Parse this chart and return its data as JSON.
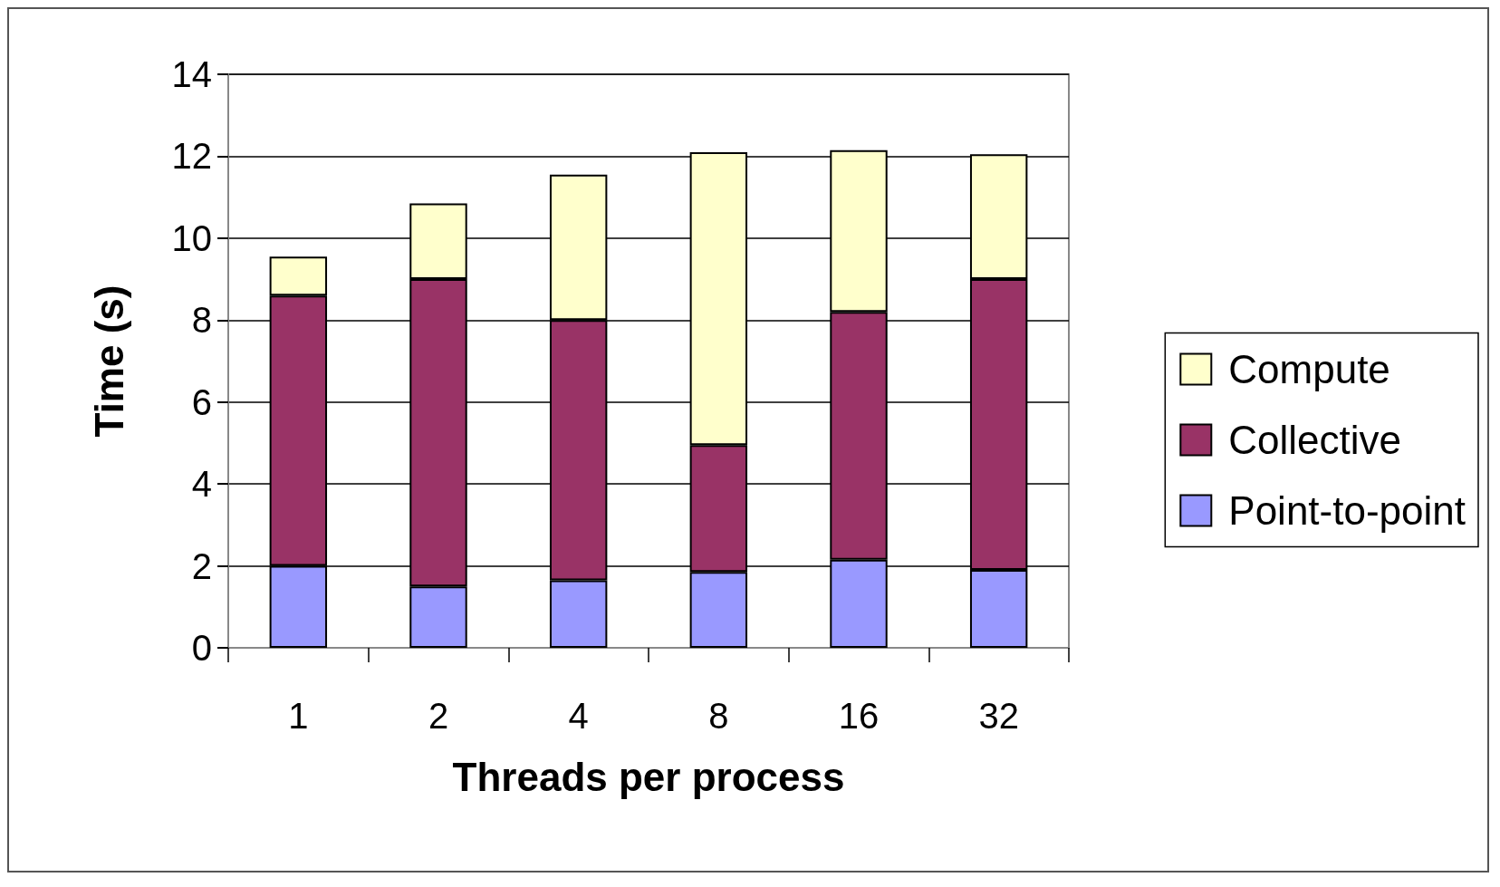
{
  "chart_data": {
    "type": "bar",
    "stacked": true,
    "xlabel": "Threads per process",
    "ylabel": "Time (s)",
    "categories": [
      "1",
      "2",
      "4",
      "8",
      "16",
      "32"
    ],
    "series": [
      {
        "name": "Point-to-point",
        "color": "#9999ff",
        "values": [
          2.0,
          1.5,
          1.65,
          1.85,
          2.15,
          1.9
        ]
      },
      {
        "name": "Collective",
        "color": "#993366",
        "values": [
          6.6,
          7.5,
          6.35,
          3.1,
          6.05,
          7.1
        ]
      },
      {
        "name": "Compute",
        "color": "#ffffcc",
        "values": [
          0.95,
          1.85,
          3.55,
          7.15,
          3.95,
          3.05
        ]
      }
    ],
    "ylim": [
      0,
      14
    ],
    "yticks": [
      0,
      2,
      4,
      6,
      8,
      10,
      12,
      14
    ],
    "grid": "y",
    "legend": "right"
  }
}
